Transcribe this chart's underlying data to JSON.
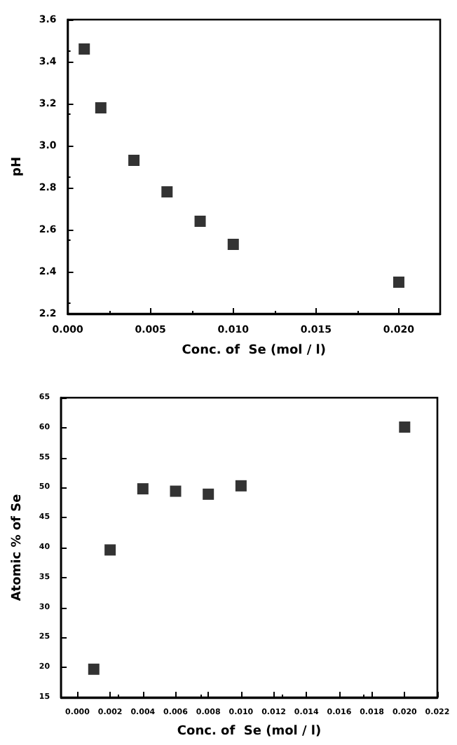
{
  "chart_data": [
    {
      "type": "scatter",
      "xlabel": "Conc. of  Se (mol / l)",
      "ylabel": "pH",
      "x": [
        0.001,
        0.002,
        0.004,
        0.006,
        0.008,
        0.01,
        0.02
      ],
      "series": [
        {
          "color": "#000000",
          "values": [
            3.46,
            3.18,
            2.93,
            2.78,
            2.64,
            2.53,
            2.35
          ]
        }
      ],
      "xlim": [
        0,
        0.0225
      ],
      "xticks": [
        {
          "value": 0,
          "label": "0.000"
        },
        {
          "value": 0.005,
          "label": "0.005"
        },
        {
          "value": 0.01,
          "label": "0.010"
        },
        {
          "value": 0.015,
          "label": "0.015"
        },
        {
          "value": 0.02,
          "label": "0.020"
        }
      ],
      "ylim": [
        2.2,
        3.6
      ],
      "yticks": [
        {
          "value": 2.2,
          "label": "2.2"
        },
        {
          "value": 2.4,
          "label": "2.4"
        },
        {
          "value": 2.6,
          "label": "2.6"
        },
        {
          "value": 2.8,
          "label": "2.8"
        },
        {
          "value": 3.0,
          "label": "3.0"
        },
        {
          "value": 3.2,
          "label": "3.2"
        },
        {
          "value": 3.4,
          "label": "3.4"
        },
        {
          "value": 3.6,
          "label": "3.6"
        }
      ],
      "grid": false,
      "marker": "square"
    },
    {
      "type": "scatter",
      "xlabel": "Conc. of  Se (mol / l)",
      "ylabel": "Atomic % of Se",
      "x": [
        0.001,
        0.002,
        0.004,
        0.006,
        0.008,
        0.01,
        0.02
      ],
      "series": [
        {
          "color": "#000000",
          "values": [
            19.7,
            39.6,
            49.8,
            49.4,
            48.9,
            50.3,
            60.1
          ]
        }
      ],
      "xlim": [
        -0.001,
        0.022
      ],
      "xticks": [
        {
          "value": 0,
          "label": "0.000"
        },
        {
          "value": 0.002,
          "label": "0.002"
        },
        {
          "value": 0.004,
          "label": "0.004"
        },
        {
          "value": 0.006,
          "label": "0.006"
        },
        {
          "value": 0.008,
          "label": "0.008"
        },
        {
          "value": 0.01,
          "label": "0.010"
        },
        {
          "value": 0.012,
          "label": "0.012"
        },
        {
          "value": 0.014,
          "label": "0.014"
        },
        {
          "value": 0.016,
          "label": "0.016"
        },
        {
          "value": 0.018,
          "label": "0.018"
        },
        {
          "value": 0.02,
          "label": "0.020"
        },
        {
          "value": 0.022,
          "label": "0.022"
        }
      ],
      "ylim": [
        15,
        65
      ],
      "yticks": [
        15,
        20,
        25,
        30,
        35,
        40,
        45,
        50,
        55,
        60,
        65
      ],
      "grid": false,
      "marker": "square"
    }
  ]
}
